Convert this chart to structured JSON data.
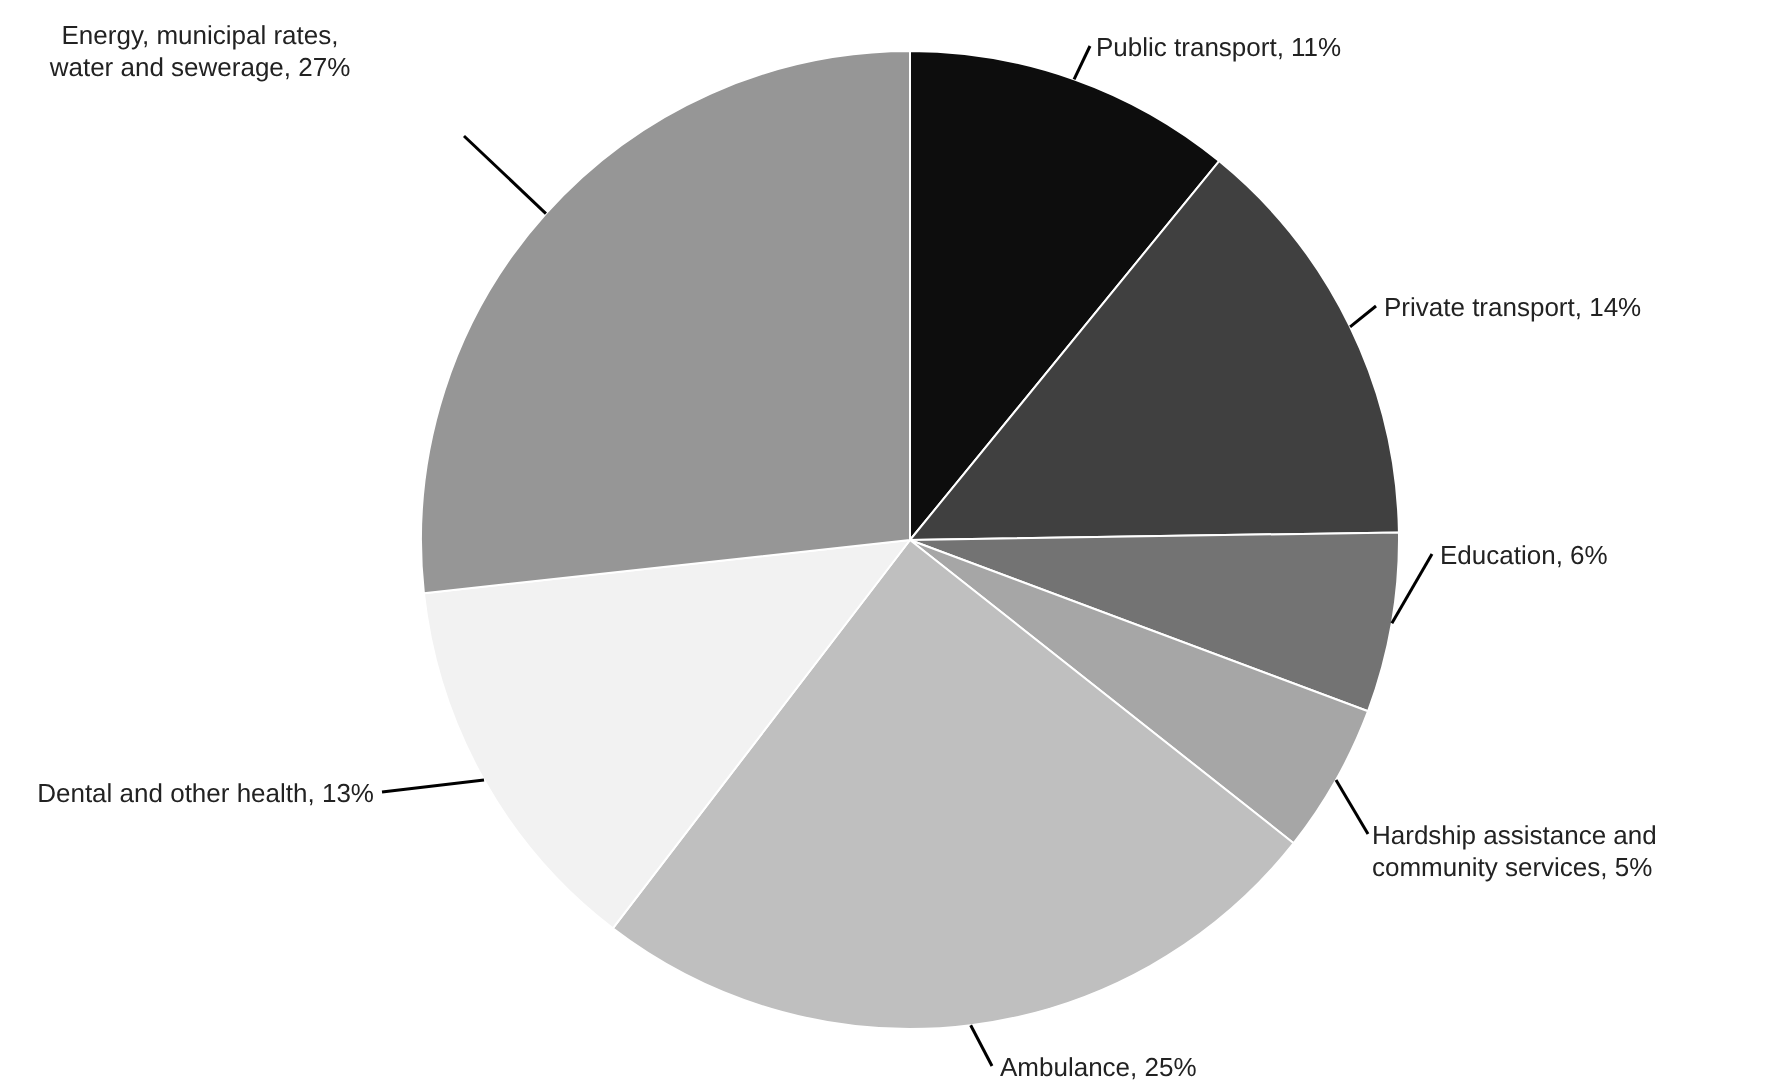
{
  "chart_data": {
    "type": "pie",
    "categories": [
      "Public transport",
      "Private transport",
      "Education",
      "Hardship assistance and community services",
      "Ambulance",
      "Dental and other health",
      "Energy, municipal rates, water and sewerage"
    ],
    "values": [
      11,
      14,
      6,
      5,
      25,
      13,
      27
    ],
    "value_labels": [
      "11%",
      "14%",
      "6%",
      "5%",
      "25%",
      "13%",
      "27%"
    ],
    "colors": [
      "#0d0d0d",
      "#404040",
      "#737373",
      "#a6a6a6",
      "#bfbfbf",
      "#f2f2f2",
      "#969696"
    ],
    "legend": false
  }
}
